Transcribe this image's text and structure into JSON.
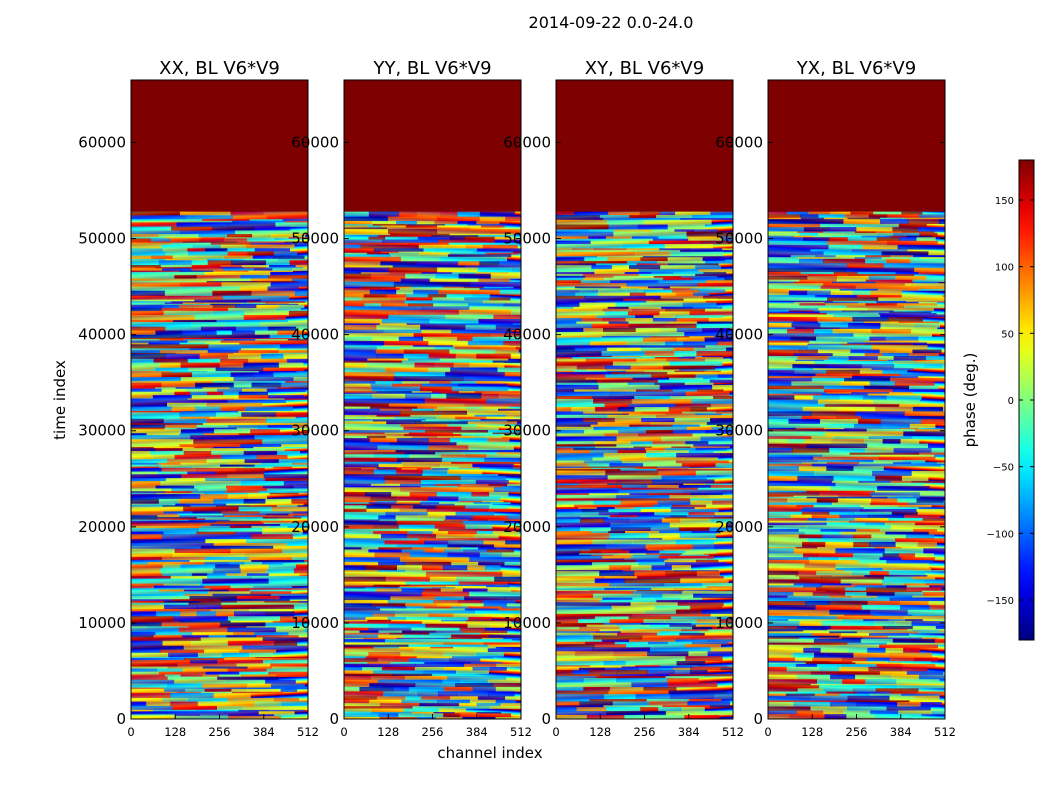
{
  "figure": {
    "title": "2014-09-22 0.0-24.0",
    "xlabel": "channel index",
    "ylabel": "time index"
  },
  "colorbar": {
    "label": "phase (deg.)",
    "range": [
      -180,
      180
    ],
    "ticks": [
      -150,
      -100,
      -50,
      0,
      50,
      100,
      150
    ],
    "tick_labels": [
      "−150",
      "−100",
      "−50",
      "0",
      "50",
      "100",
      "150"
    ],
    "colormap": "jet",
    "colors": [
      "#00007f",
      "#0000ff",
      "#007fff",
      "#00ffff",
      "#7fff7f",
      "#ffff00",
      "#ff7f00",
      "#ff0000",
      "#7f0000"
    ]
  },
  "chart_data": [
    {
      "type": "heatmap",
      "title": "XX, BL V6*V9",
      "x_ticks": [
        0,
        128,
        256,
        384,
        512
      ],
      "y_ticks": [
        0,
        10000,
        20000,
        30000,
        40000,
        50000,
        60000
      ],
      "xlim": [
        0,
        512
      ],
      "ylim": [
        0,
        66500
      ],
      "y_tick_labels": [
        "0",
        "10000",
        "20000",
        "30000",
        "40000",
        "50000",
        "60000"
      ],
      "saturated_above_time_index": 52800,
      "saturated_phase_deg": 180
    },
    {
      "type": "heatmap",
      "title": "YY, BL V6*V9",
      "x_ticks": [
        0,
        128,
        256,
        384,
        512
      ],
      "y_ticks": [
        0,
        10000,
        20000,
        30000,
        40000,
        50000,
        60000
      ],
      "xlim": [
        0,
        512
      ],
      "ylim": [
        0,
        66500
      ],
      "y_tick_labels": [
        "0",
        "10000",
        "20000",
        "30000",
        "40000",
        "50000",
        "60000"
      ],
      "saturated_above_time_index": 52800,
      "saturated_phase_deg": 180
    },
    {
      "type": "heatmap",
      "title": "XY, BL V6*V9",
      "x_ticks": [
        0,
        128,
        256,
        384,
        512
      ],
      "y_ticks": [
        0,
        10000,
        20000,
        30000,
        40000,
        50000,
        60000
      ],
      "xlim": [
        0,
        512
      ],
      "ylim": [
        0,
        66500
      ],
      "y_tick_labels": [
        "0",
        "10000",
        "20000",
        "30000",
        "40000",
        "50000",
        "60000"
      ],
      "saturated_above_time_index": 52800,
      "saturated_phase_deg": 180
    },
    {
      "type": "heatmap",
      "title": "YX, BL V6*V9",
      "x_ticks": [
        0,
        128,
        256,
        384,
        512
      ],
      "y_ticks": [
        0,
        10000,
        20000,
        30000,
        40000,
        50000,
        60000
      ],
      "xlim": [
        0,
        512
      ],
      "ylim": [
        0,
        66500
      ],
      "y_tick_labels": [
        "0",
        "10000",
        "20000",
        "30000",
        "40000",
        "50000",
        "60000"
      ],
      "saturated_above_time_index": 52800,
      "saturated_phase_deg": 180
    }
  ]
}
